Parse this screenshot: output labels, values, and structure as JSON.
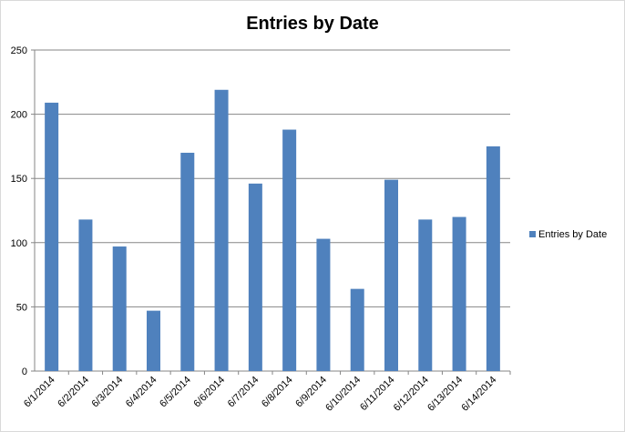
{
  "chart_data": {
    "type": "bar",
    "title": "Entries by Date",
    "categories": [
      "6/1/2014",
      "6/2/2014",
      "6/3/2014",
      "6/4/2014",
      "6/5/2014",
      "6/6/2014",
      "6/7/2014",
      "6/8/2014",
      "6/9/2014",
      "6/10/2014",
      "6/11/2014",
      "6/12/2014",
      "6/13/2014",
      "6/14/2014"
    ],
    "series": [
      {
        "name": "Entries by Date",
        "color": "#4f81bd",
        "values": [
          209,
          118,
          97,
          47,
          170,
          219,
          146,
          188,
          103,
          64,
          149,
          118,
          120,
          175
        ]
      }
    ],
    "ylim": [
      0,
      250
    ],
    "yticks": [
      0,
      50,
      100,
      150,
      200,
      250
    ],
    "grid": true,
    "legend": "right"
  }
}
